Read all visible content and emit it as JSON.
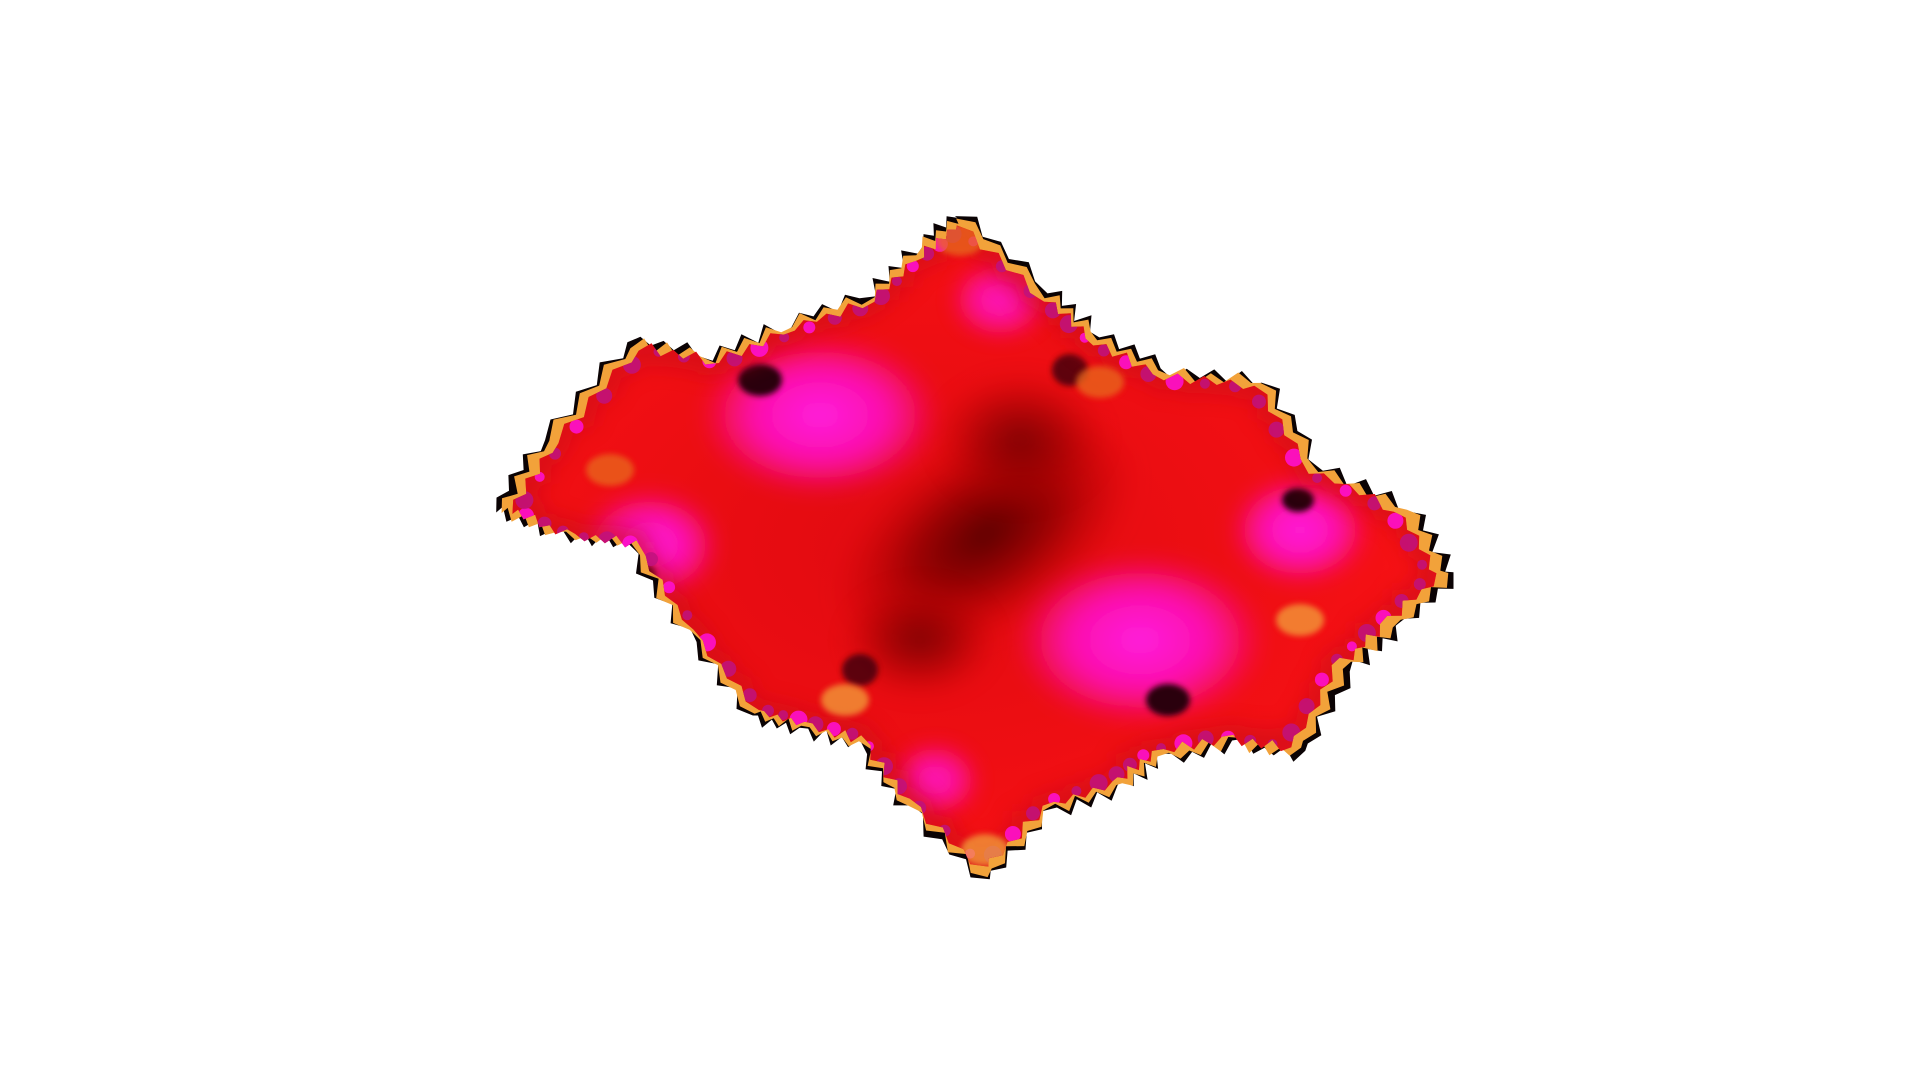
{
  "colors": {
    "background": "#ffffff",
    "body_red": "#f20d12",
    "body_dark": "#6a0208",
    "highlight_magenta": "#ff10d8",
    "edge_gold": "#f2a23a",
    "edge_orange": "#e86a1c",
    "edge_black": "#0b0304",
    "edge_teal": "#2fb5b0",
    "bud_purple": "#c0127f"
  },
  "fractal": {
    "icon": "julia-set-fractal"
  }
}
